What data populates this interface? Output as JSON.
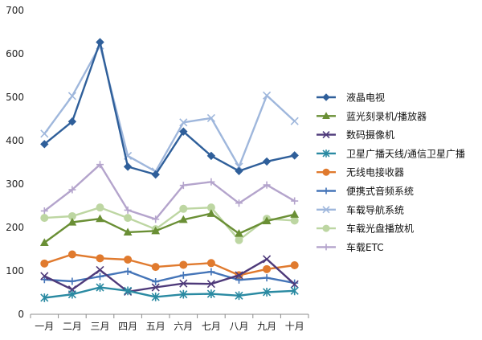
{
  "chart_data": {
    "type": "line",
    "title": "",
    "xlabel": "",
    "ylabel": "",
    "ylim": [
      0,
      700
    ],
    "yticks": [
      0,
      100,
      200,
      300,
      400,
      500,
      600,
      700
    ],
    "ytick_labels": [
      "0",
      "100",
      "200",
      "300",
      "400",
      "500",
      "600",
      "700"
    ],
    "grid": false,
    "legend_position": "right",
    "categories": [
      "一月",
      "二月",
      "三月",
      "四月",
      "五月",
      "六月",
      "七月",
      "八月",
      "九月",
      "十月"
    ],
    "series": [
      {
        "name": "液晶电视",
        "color": "#2f5f9a",
        "marker": "diamond",
        "values": [
          392,
          444,
          627,
          340,
          322,
          421,
          365,
          330,
          352,
          366
        ]
      },
      {
        "name": "蓝光刻录机/播放器",
        "color": "#6a8f35",
        "marker": "triangle",
        "values": [
          165,
          212,
          220,
          189,
          192,
          218,
          232,
          186,
          215,
          230
        ]
      },
      {
        "name": "数码摄像机",
        "color": "#4e3a7a",
        "marker": "x",
        "values": [
          88,
          57,
          102,
          52,
          62,
          71,
          70,
          90,
          127,
          69
        ]
      },
      {
        "name": "卫星广播天线/通信卫星广播",
        "color": "#2a8aa2",
        "marker": "star",
        "values": [
          38,
          46,
          62,
          54,
          40,
          46,
          47,
          43,
          51,
          54
        ]
      },
      {
        "name": "无线电接收器",
        "color": "#e07a2e",
        "marker": "circle",
        "values": [
          117,
          138,
          129,
          126,
          109,
          114,
          118,
          90,
          104,
          113
        ]
      },
      {
        "name": "便携式音频系统",
        "color": "#4575b8",
        "marker": "plus",
        "values": [
          80,
          76,
          87,
          99,
          75,
          90,
          98,
          79,
          84,
          72
        ]
      },
      {
        "name": "车载导航系统",
        "color": "#9fb7dc",
        "marker": "x",
        "values": [
          416,
          503,
          619,
          365,
          329,
          442,
          452,
          340,
          504,
          445
        ]
      },
      {
        "name": "车载光盘播放机",
        "color": "#bdd6a2",
        "marker": "circle",
        "values": [
          222,
          226,
          246,
          222,
          196,
          243,
          246,
          171,
          220,
          216
        ]
      },
      {
        "name": "车载ETC",
        "color": "#b4a4cc",
        "marker": "plus",
        "values": [
          238,
          287,
          345,
          240,
          219,
          297,
          305,
          256,
          298,
          261
        ]
      }
    ]
  }
}
